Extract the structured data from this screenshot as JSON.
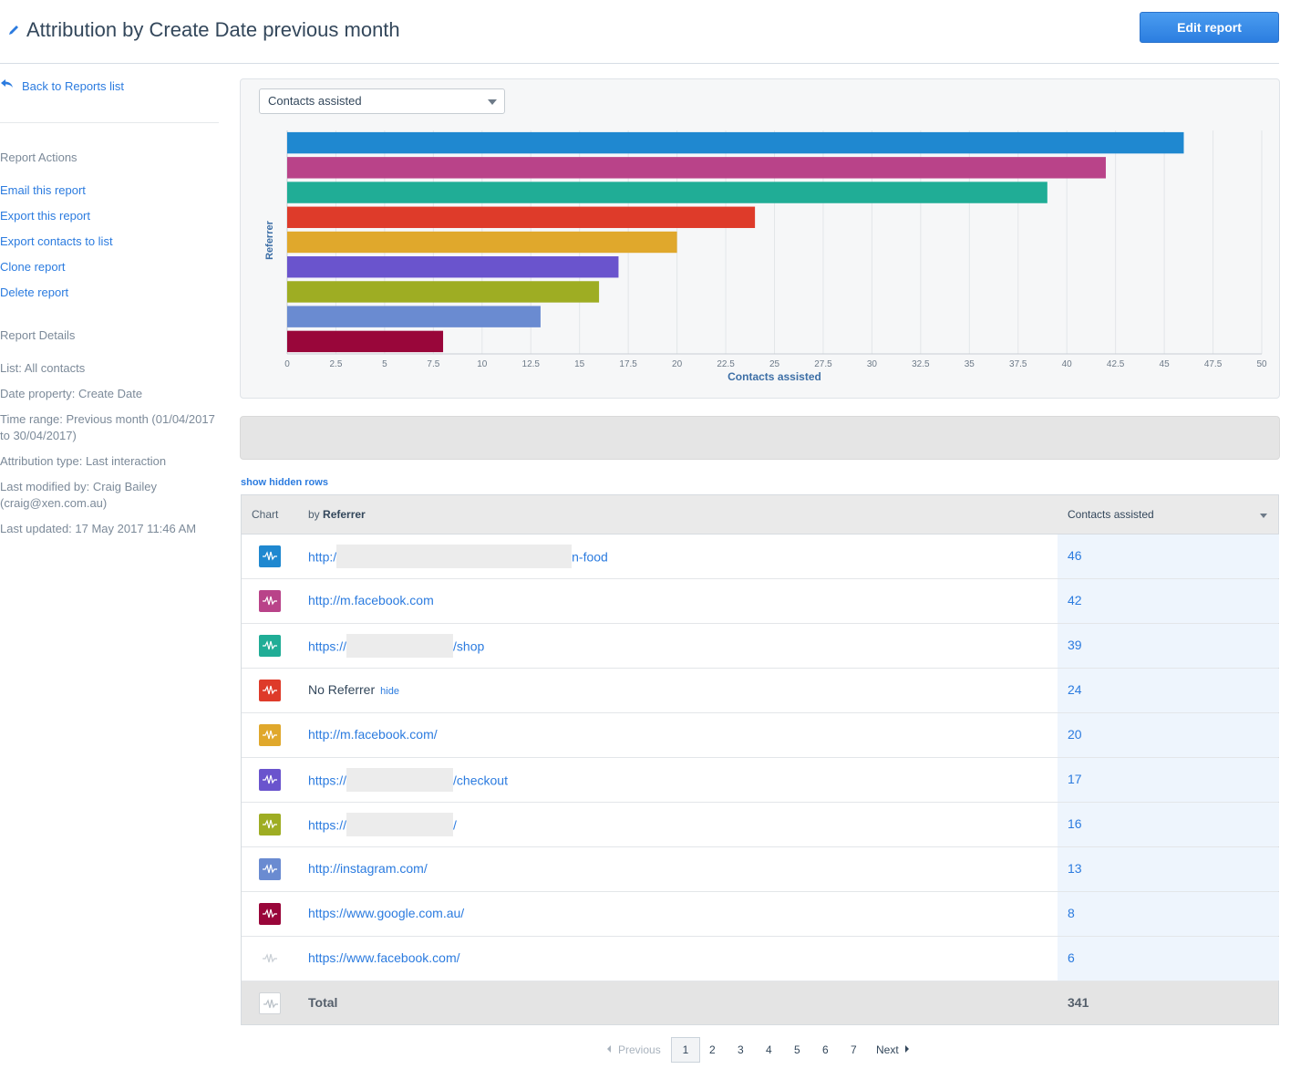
{
  "header": {
    "title": "Attribution by Create Date previous month",
    "edit_label": "Edit report"
  },
  "sidebar": {
    "back_label": "Back to Reports list",
    "actions_heading": "Report Actions",
    "actions": [
      "Email this report",
      "Export this report",
      "Export contacts to list",
      "Clone report",
      "Delete report"
    ],
    "details_heading": "Report Details",
    "details": [
      "List: All contacts",
      "Date property: Create Date",
      "Time range: Previous month (01/04/2017 to 30/04/2017)",
      "Attribution type: Last interaction",
      "Last modified by: Craig Bailey (craig@xen.com.au)",
      "Last updated: 17 May 2017 11:46 AM"
    ]
  },
  "metric_select": {
    "value": "Contacts assisted"
  },
  "chart_data": {
    "type": "bar",
    "orientation": "horizontal",
    "ylabel": "Referrer",
    "xlabel": "Contacts assisted",
    "xlim": [
      0,
      50
    ],
    "ticks": [
      "0",
      "2.5",
      "5",
      "7.5",
      "10",
      "12.5",
      "15",
      "17.5",
      "20",
      "22.5",
      "25",
      "27.5",
      "30",
      "32.5",
      "35",
      "37.5",
      "40",
      "42.5",
      "45",
      "47.5",
      "50"
    ],
    "values": [
      46,
      42,
      39,
      24,
      20,
      17,
      16,
      13,
      8
    ],
    "colors": [
      "#1f88d0",
      "#b94389",
      "#20ad96",
      "#de3b2a",
      "#e0a82c",
      "#6a54cd",
      "#9ead23",
      "#6a8bd1",
      "#99063a"
    ],
    "grid": true,
    "legend": "none"
  },
  "show_hidden_label": "show hidden rows",
  "table": {
    "col_chart": "Chart",
    "col_by": "by",
    "col_referrer": "Referrer",
    "col_value": "Contacts assisted",
    "hide_label": "hide",
    "rows": [
      {
        "prefix": "http:/",
        "suffix": "n-food",
        "value": "46",
        "color": "#1f88d0"
      },
      {
        "prefix": "http://m.facebook.com",
        "suffix": "",
        "value": "42",
        "color": "#b94389"
      },
      {
        "prefix": "https://",
        "suffix": "/shop",
        "value": "39",
        "color": "#20ad96"
      },
      {
        "prefix": "No Referrer",
        "suffix": "",
        "value": "24",
        "color": "#de3b2a"
      },
      {
        "prefix": "http://m.facebook.com/",
        "suffix": "",
        "value": "20",
        "color": "#e0a82c"
      },
      {
        "prefix": "https://",
        "suffix": "/checkout",
        "value": "17",
        "color": "#6a54cd"
      },
      {
        "prefix": "https://",
        "suffix": "/",
        "value": "16",
        "color": "#9ead23"
      },
      {
        "prefix": "http://instagram.com/",
        "suffix": "",
        "value": "13",
        "color": "#6a8bd1"
      },
      {
        "prefix": "https://www.google.com.au/",
        "suffix": "",
        "value": "8",
        "color": "#99063a"
      },
      {
        "prefix": "https://www.facebook.com/",
        "suffix": "",
        "value": "6",
        "color": "#ffffff"
      }
    ],
    "total_label": "Total",
    "total_value": "341"
  },
  "pagination": {
    "previous": "Previous",
    "pages": [
      "1",
      "2",
      "3",
      "4",
      "5",
      "6",
      "7"
    ],
    "next": "Next",
    "current": "1"
  }
}
